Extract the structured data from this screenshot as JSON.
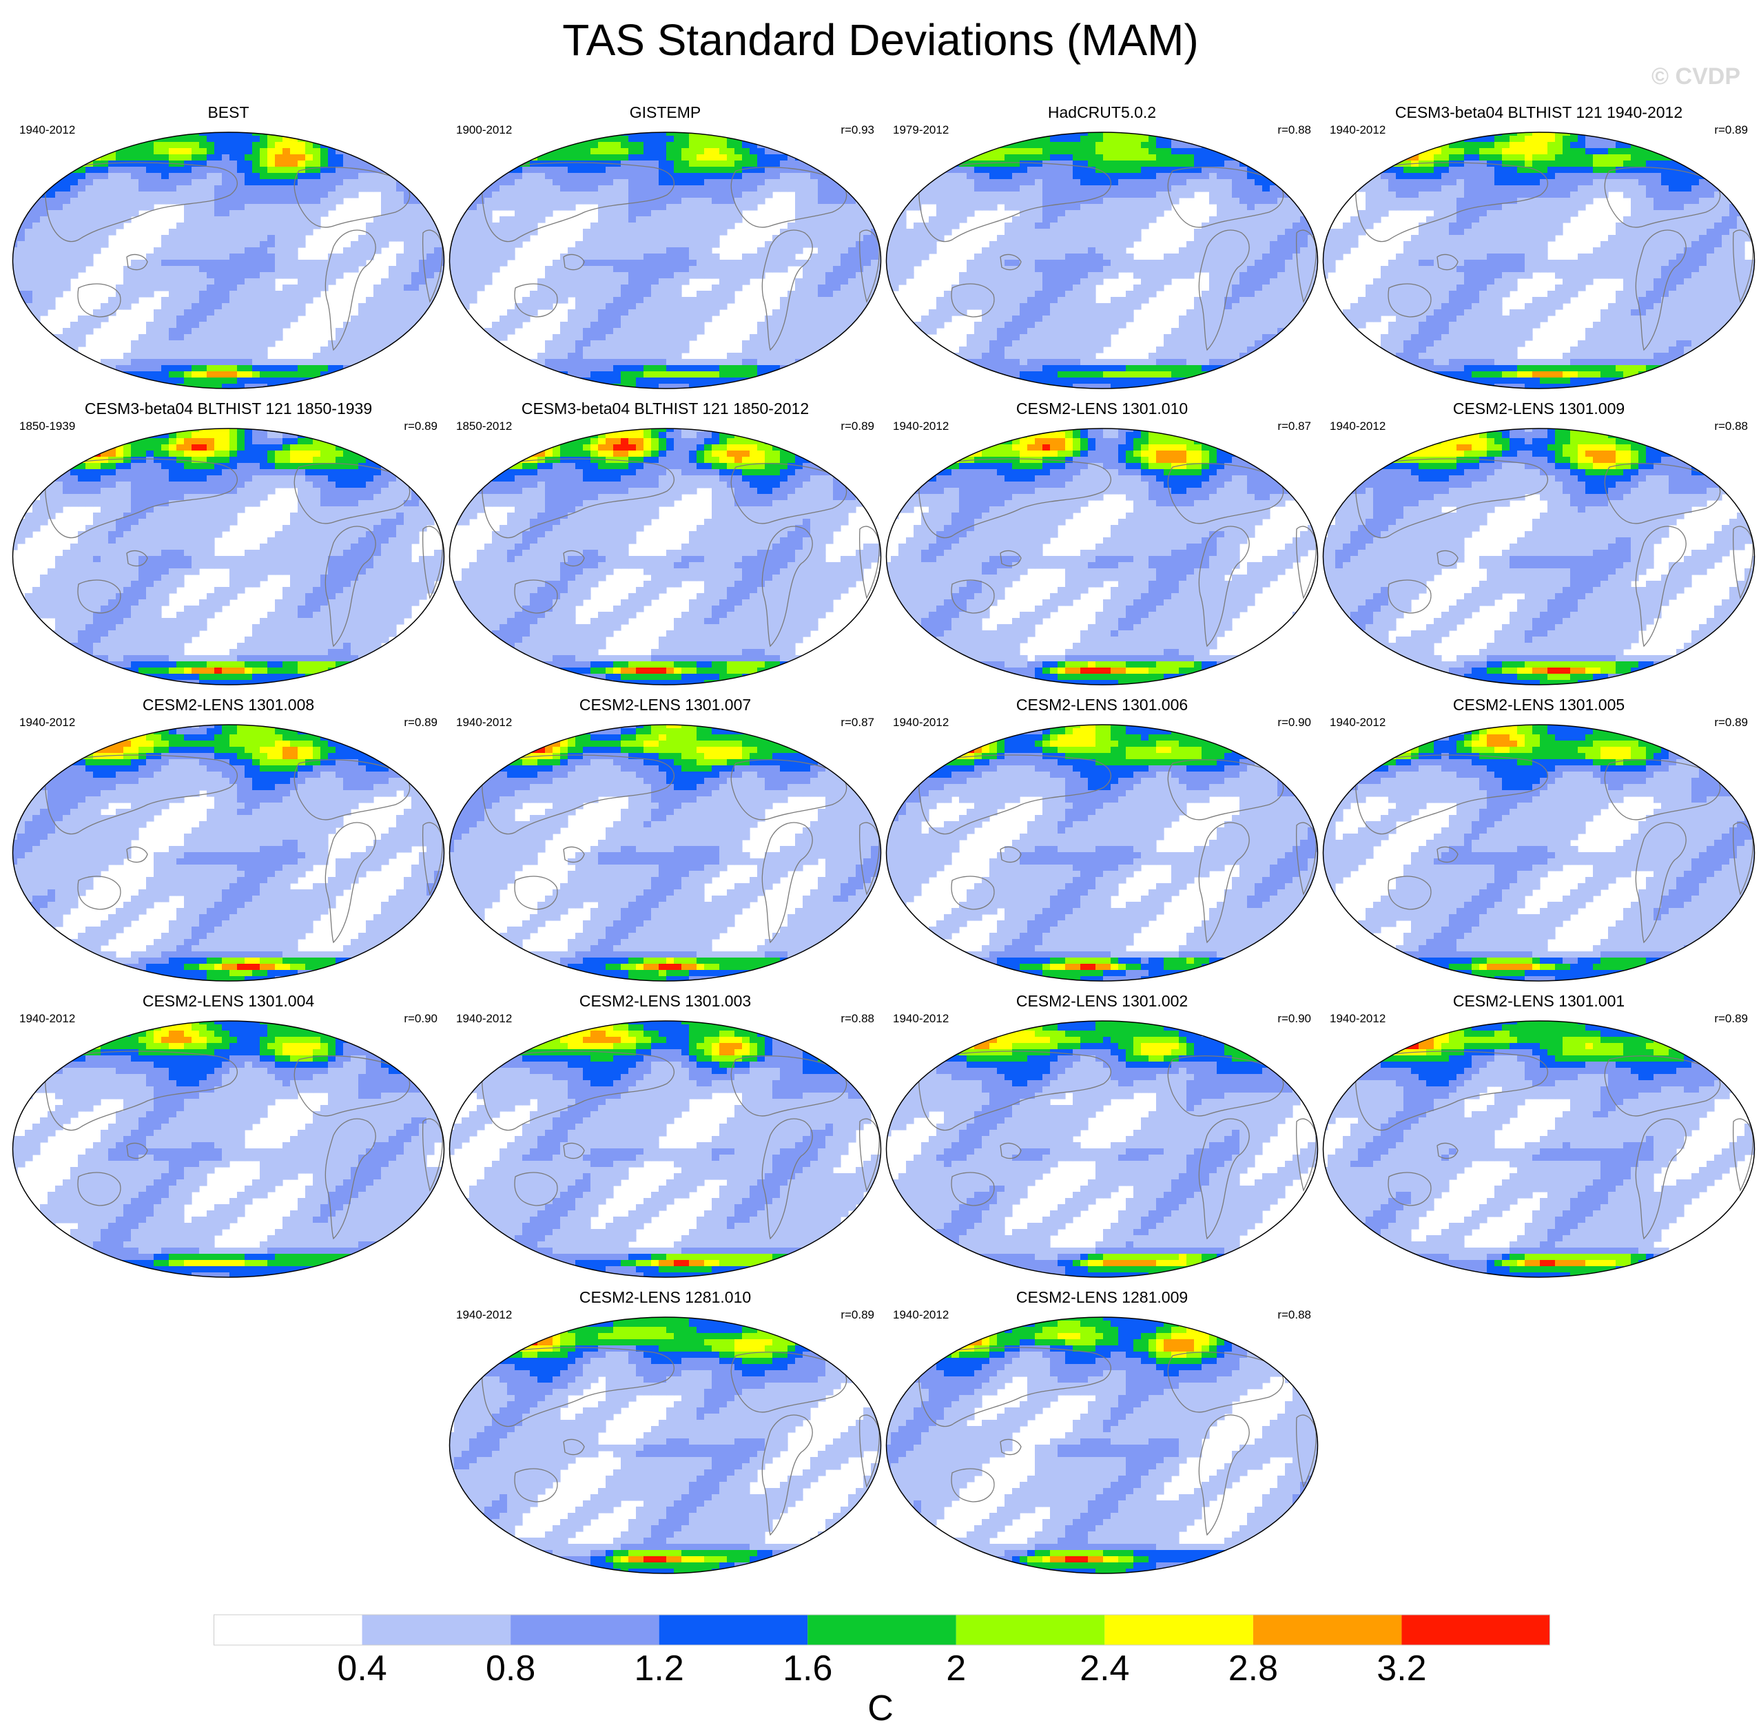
{
  "title": "TAS Standard Deviations (MAM)",
  "copyright": "© CVDP",
  "panels": [
    {
      "title": "BEST",
      "years": "1940-2012",
      "r": "",
      "amp": 1.0
    },
    {
      "title": "GISTEMP",
      "years": "1900-2012",
      "r": "r=0.93",
      "amp": 0.8
    },
    {
      "title": "HadCRUT5.0.2",
      "years": "1979-2012",
      "r": "r=0.88",
      "amp": 0.85
    },
    {
      "title": "CESM3-beta04 BLTHIST 121 1940-2012",
      "years": "1940-2012",
      "r": "r=0.89",
      "amp": 1.2
    },
    {
      "title": "CESM3-beta04 BLTHIST 121 1850-1939",
      "years": "1850-1939",
      "r": "r=0.89",
      "amp": 1.35
    },
    {
      "title": "CESM3-beta04 BLTHIST 121 1850-2012",
      "years": "1850-2012",
      "r": "r=0.89",
      "amp": 1.35
    },
    {
      "title": "CESM2-LENS 1301.010",
      "years": "1940-2012",
      "r": "r=0.87",
      "amp": 1.3
    },
    {
      "title": "CESM2-LENS 1301.009",
      "years": "1940-2012",
      "r": "r=0.88",
      "amp": 1.2
    },
    {
      "title": "CESM2-LENS 1301.008",
      "years": "1940-2012",
      "r": "r=0.89",
      "amp": 1.2
    },
    {
      "title": "CESM2-LENS 1301.007",
      "years": "1940-2012",
      "r": "r=0.87",
      "amp": 1.25
    },
    {
      "title": "CESM2-LENS 1301.006",
      "years": "1940-2012",
      "r": "r=0.90",
      "amp": 1.2
    },
    {
      "title": "CESM2-LENS 1301.005",
      "years": "1940-2012",
      "r": "r=0.89",
      "amp": 1.2
    },
    {
      "title": "CESM2-LENS 1301.004",
      "years": "1940-2012",
      "r": "r=0.90",
      "amp": 1.15
    },
    {
      "title": "CESM2-LENS 1301.003",
      "years": "1940-2012",
      "r": "r=0.88",
      "amp": 1.25
    },
    {
      "title": "CESM2-LENS 1301.002",
      "years": "1940-2012",
      "r": "r=0.90",
      "amp": 1.15
    },
    {
      "title": "CESM2-LENS 1301.001",
      "years": "1940-2012",
      "r": "r=0.89",
      "amp": 1.2
    },
    {
      "title": "CESM2-LENS 1281.010",
      "years": "1940-2012",
      "r": "r=0.89",
      "amp": 1.2
    },
    {
      "title": "CESM2-LENS 1281.009",
      "years": "1940-2012",
      "r": "r=0.88",
      "amp": 1.2
    }
  ],
  "colorbar": {
    "colors": [
      "#ffffff",
      "#b4c4f8",
      "#8199f5",
      "#0b5cf9",
      "#0cc92e",
      "#99ff00",
      "#ffff00",
      "#ff9d00",
      "#ff1a00"
    ],
    "ticks": [
      "0.4",
      "0.8",
      "1.2",
      "1.6",
      "2",
      "2.4",
      "2.8",
      "3.2"
    ],
    "thresholds": [
      0.4,
      0.8,
      1.2,
      1.6,
      2.0,
      2.4,
      2.8,
      3.2
    ],
    "units": "C"
  }
}
